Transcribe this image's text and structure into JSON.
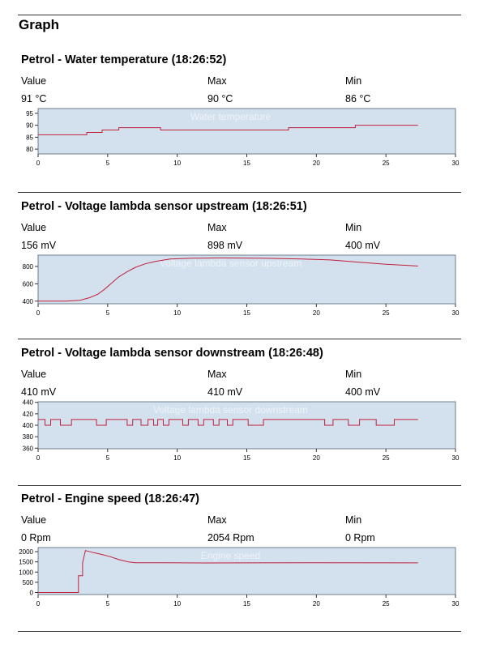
{
  "page_title": "Graph",
  "col_headers": {
    "value": "Value",
    "max": "Max",
    "min": "Min"
  },
  "sections": [
    {
      "title": "Petrol -  Water temperature (18:26:52)",
      "value": "91 °C",
      "max": "90 °C",
      "min": "86 °C",
      "chart_data": {
        "type": "line",
        "title": "Water temperature",
        "xlim": [
          0,
          30
        ],
        "ylim": [
          78,
          97
        ],
        "xticks": [
          0,
          5,
          10,
          15,
          20,
          25,
          30
        ],
        "yticks": [
          80,
          85,
          90,
          95
        ],
        "grid": false,
        "series": [
          {
            "color": "#c0203a",
            "points": [
              [
                0,
                86
              ],
              [
                3.5,
                86
              ],
              [
                3.5,
                87
              ],
              [
                4.6,
                87
              ],
              [
                4.6,
                88
              ],
              [
                5.8,
                88
              ],
              [
                5.8,
                89
              ],
              [
                8.8,
                89
              ],
              [
                8.8,
                88
              ],
              [
                18,
                88
              ],
              [
                18,
                89
              ],
              [
                22.8,
                89
              ],
              [
                22.8,
                90
              ],
              [
                27.3,
                90
              ]
            ]
          }
        ]
      }
    },
    {
      "title": "Petrol -  Voltage lambda sensor upstream (18:26:51)",
      "value": "156 mV",
      "max": "898 mV",
      "min": "400 mV",
      "chart_data": {
        "type": "line",
        "title": "Voltage lambda sensor upstream",
        "xlim": [
          0,
          30
        ],
        "ylim": [
          370,
          930
        ],
        "xticks": [
          0,
          5,
          10,
          15,
          20,
          25,
          30
        ],
        "yticks": [
          400,
          600,
          800
        ],
        "grid": false,
        "series": [
          {
            "color": "#c0203a",
            "points": [
              [
                0,
                400
              ],
              [
                2,
                400
              ],
              [
                3,
                410
              ],
              [
                3.7,
                440
              ],
              [
                4.3,
                480
              ],
              [
                4.8,
                540
              ],
              [
                5.3,
                610
              ],
              [
                5.8,
                680
              ],
              [
                6.4,
                740
              ],
              [
                7,
                790
              ],
              [
                7.7,
                830
              ],
              [
                8.5,
                860
              ],
              [
                9.5,
                885
              ],
              [
                11,
                895
              ],
              [
                13,
                898
              ],
              [
                16,
                895
              ],
              [
                19,
                885
              ],
              [
                21,
                875
              ],
              [
                23,
                850
              ],
              [
                25,
                825
              ],
              [
                27.3,
                805
              ]
            ]
          }
        ]
      }
    },
    {
      "title": "Petrol -  Voltage lambda sensor downstream (18:26:48)",
      "value": "410 mV",
      "max": "410 mV",
      "min": "400 mV",
      "chart_data": {
        "type": "line",
        "title": "Voltage lambda sensor downstream",
        "xlim": [
          0,
          30
        ],
        "ylim": [
          359,
          441
        ],
        "xticks": [
          0,
          5,
          10,
          15,
          20,
          25,
          30
        ],
        "yticks": [
          360,
          380,
          400,
          420,
          440
        ],
        "grid": false,
        "series": [
          {
            "color": "#c0203a",
            "points": [
              [
                0,
                410
              ],
              [
                0.5,
                410
              ],
              [
                0.5,
                400
              ],
              [
                0.9,
                400
              ],
              [
                0.9,
                410
              ],
              [
                1.6,
                410
              ],
              [
                1.6,
                400
              ],
              [
                2.4,
                400
              ],
              [
                2.4,
                410
              ],
              [
                4.2,
                410
              ],
              [
                4.2,
                400
              ],
              [
                4.9,
                400
              ],
              [
                4.9,
                410
              ],
              [
                6.4,
                410
              ],
              [
                6.4,
                400
              ],
              [
                6.8,
                400
              ],
              [
                6.8,
                410
              ],
              [
                7.4,
                410
              ],
              [
                7.4,
                400
              ],
              [
                7.9,
                400
              ],
              [
                7.9,
                410
              ],
              [
                8.3,
                410
              ],
              [
                8.3,
                400
              ],
              [
                8.6,
                400
              ],
              [
                8.6,
                410
              ],
              [
                9,
                410
              ],
              [
                9,
                400
              ],
              [
                9.4,
                400
              ],
              [
                9.4,
                410
              ],
              [
                10.4,
                410
              ],
              [
                10.4,
                400
              ],
              [
                10.8,
                400
              ],
              [
                10.8,
                410
              ],
              [
                11.5,
                410
              ],
              [
                11.5,
                400
              ],
              [
                11.9,
                400
              ],
              [
                11.9,
                410
              ],
              [
                12.6,
                410
              ],
              [
                12.6,
                400
              ],
              [
                13,
                400
              ],
              [
                13,
                410
              ],
              [
                13.6,
                410
              ],
              [
                13.6,
                400
              ],
              [
                14,
                400
              ],
              [
                14,
                410
              ],
              [
                15.1,
                410
              ],
              [
                15.1,
                400
              ],
              [
                16.2,
                400
              ],
              [
                16.2,
                410
              ],
              [
                20.6,
                410
              ],
              [
                20.6,
                400
              ],
              [
                21.2,
                400
              ],
              [
                21.2,
                410
              ],
              [
                22.3,
                410
              ],
              [
                22.3,
                400
              ],
              [
                23.1,
                400
              ],
              [
                23.1,
                410
              ],
              [
                24.3,
                410
              ],
              [
                24.3,
                400
              ],
              [
                25.6,
                400
              ],
              [
                25.6,
                410
              ],
              [
                27.3,
                410
              ]
            ]
          }
        ]
      }
    },
    {
      "title": "Petrol -  Engine speed (18:26:47)",
      "value": "0 Rpm",
      "max": "2054 Rpm",
      "min": "0 Rpm",
      "chart_data": {
        "type": "line",
        "title": "Engine speed",
        "xlim": [
          0,
          30
        ],
        "ylim": [
          -100,
          2200
        ],
        "xticks": [
          0,
          5,
          10,
          15,
          20,
          25,
          30
        ],
        "yticks": [
          0,
          500,
          1000,
          1500,
          2000
        ],
        "grid": false,
        "series": [
          {
            "color": "#c0203a",
            "points": [
              [
                0,
                0
              ],
              [
                2.9,
                0
              ],
              [
                2.9,
                820
              ],
              [
                3.2,
                820
              ],
              [
                3.2,
                1450
              ],
              [
                3.4,
                2054
              ],
              [
                4,
                1950
              ],
              [
                4.6,
                1860
              ],
              [
                5.2,
                1750
              ],
              [
                5.8,
                1610
              ],
              [
                6.5,
                1500
              ],
              [
                7,
                1460
              ],
              [
                9,
                1455
              ],
              [
                12,
                1445
              ],
              [
                15,
                1450
              ],
              [
                20,
                1455
              ],
              [
                27.3,
                1450
              ]
            ]
          }
        ]
      }
    }
  ]
}
